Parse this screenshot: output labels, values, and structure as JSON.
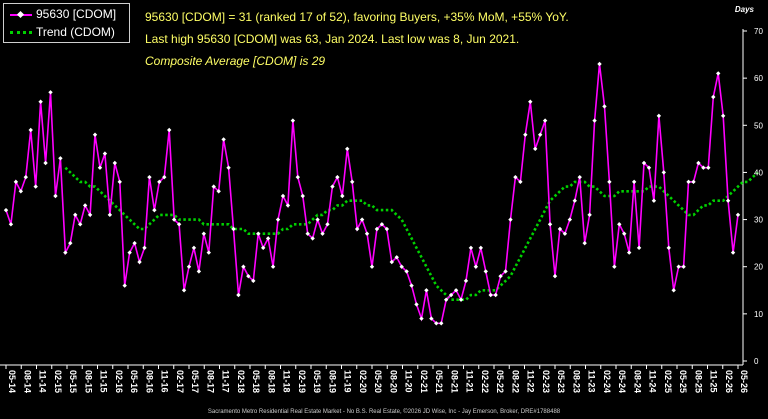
{
  "chart_data": {
    "type": "line",
    "annotations": [
      "95630 [CDOM] = 31 (ranked 17 of 52), favoring Buyers, +35% MoM, +55% YoY.",
      "Last high 95630 [CDOM] was 63, Jan 2024. Last low was 8, Jun 2021.",
      "Composite Average [CDOM] is 29"
    ],
    "ylabel": "Days",
    "ylim": [
      0,
      70
    ],
    "yticks": [
      0,
      10,
      20,
      30,
      40,
      50,
      60,
      70
    ],
    "grid": false,
    "legend": {
      "placement": "top-left"
    },
    "x_start": "05-14",
    "x_end": "05-26",
    "xtick_labels": [
      "05-14",
      "08-14",
      "11-14",
      "02-15",
      "05-15",
      "08-15",
      "11-15",
      "02-16",
      "05-16",
      "08-16",
      "11-16",
      "02-17",
      "05-17",
      "08-17",
      "11-17",
      "02-18",
      "05-18",
      "08-18",
      "11-18",
      "02-19",
      "05-19",
      "08-19",
      "11-19",
      "02-20",
      "05-20",
      "08-20",
      "11-20",
      "02-21",
      "05-21",
      "08-21",
      "11-21",
      "02-22",
      "05-22",
      "08-22",
      "11-22",
      "02-23",
      "05-23",
      "08-23",
      "11-23",
      "02-24",
      "05-24",
      "08-24",
      "11-24",
      "02-25",
      "05-25",
      "08-25",
      "11-25",
      "02-26",
      "05-26"
    ],
    "series": [
      {
        "name": "95630 [CDOM]",
        "color": "#ff00ff",
        "values": [
          32,
          29,
          38,
          36,
          39,
          49,
          37,
          55,
          42,
          57,
          35,
          43,
          23,
          25,
          31,
          29,
          33,
          31,
          48,
          41,
          44,
          31,
          42,
          38,
          16,
          23,
          25,
          21,
          24,
          39,
          32,
          38,
          39,
          49,
          30,
          29,
          15,
          20,
          24,
          19,
          27,
          23,
          37,
          36,
          47,
          41,
          28,
          14,
          20,
          18,
          17,
          27,
          24,
          26,
          20,
          30,
          35,
          33,
          51,
          39,
          35,
          27,
          26,
          30,
          27,
          29,
          37,
          39,
          35,
          45,
          38,
          28,
          30,
          27,
          20,
          28,
          29,
          28,
          21,
          22,
          20,
          19,
          16,
          12,
          9,
          15,
          9,
          8,
          8,
          13,
          14,
          15,
          13,
          17,
          24,
          20,
          24,
          19,
          14,
          14,
          18,
          19,
          30,
          39,
          38,
          48,
          55,
          45,
          48,
          51,
          29,
          18,
          28,
          27,
          30,
          34,
          39,
          25,
          31,
          51,
          63,
          54,
          38,
          20,
          29,
          27,
          23,
          38,
          24,
          42,
          41,
          34,
          52,
          40,
          24,
          15,
          20,
          20,
          38,
          38,
          42,
          41,
          41,
          56,
          61,
          52,
          34,
          23,
          31
        ]
      },
      {
        "name": "Trend (CDOM)",
        "color": "#00d000",
        "values": [
          null,
          null,
          null,
          null,
          null,
          null,
          null,
          null,
          null,
          null,
          null,
          null,
          41,
          40,
          39,
          38,
          38,
          37,
          37,
          36,
          35,
          34,
          33,
          32,
          31,
          30,
          29,
          28,
          28,
          29,
          30,
          31,
          31,
          31,
          31,
          30,
          30,
          30,
          30,
          30,
          29,
          29,
          29,
          29,
          29,
          29,
          28,
          28,
          28,
          27,
          27,
          27,
          27,
          27,
          27,
          27,
          28,
          28,
          29,
          29,
          29,
          29,
          30,
          31,
          31,
          32,
          32,
          33,
          33,
          34,
          34,
          34,
          34,
          33,
          33,
          32,
          32,
          32,
          32,
          31,
          30,
          28,
          26,
          24,
          22,
          20,
          18,
          16,
          15,
          14,
          13,
          13,
          13,
          13,
          14,
          14,
          15,
          15,
          15,
          15,
          16,
          17,
          18,
          20,
          22,
          24,
          26,
          28,
          30,
          32,
          34,
          35,
          36,
          37,
          37,
          38,
          38,
          38,
          37,
          37,
          36,
          35,
          35,
          35,
          36,
          36,
          36,
          36,
          36,
          36,
          37,
          37,
          37,
          36,
          35,
          34,
          33,
          32,
          31,
          31,
          32,
          33,
          33,
          34,
          34,
          34,
          35,
          36,
          37,
          38,
          38,
          39,
          40
        ]
      }
    ]
  },
  "legend": {
    "item1": "95630 [CDOM]",
    "item2": "Trend (CDOM)"
  },
  "footer": "Sacramento Metro Residential Real Estate Market - No B.S. Real Estate, ©2026 JD Wise, Inc - Jay Emerson, Broker, DRE#1788488"
}
